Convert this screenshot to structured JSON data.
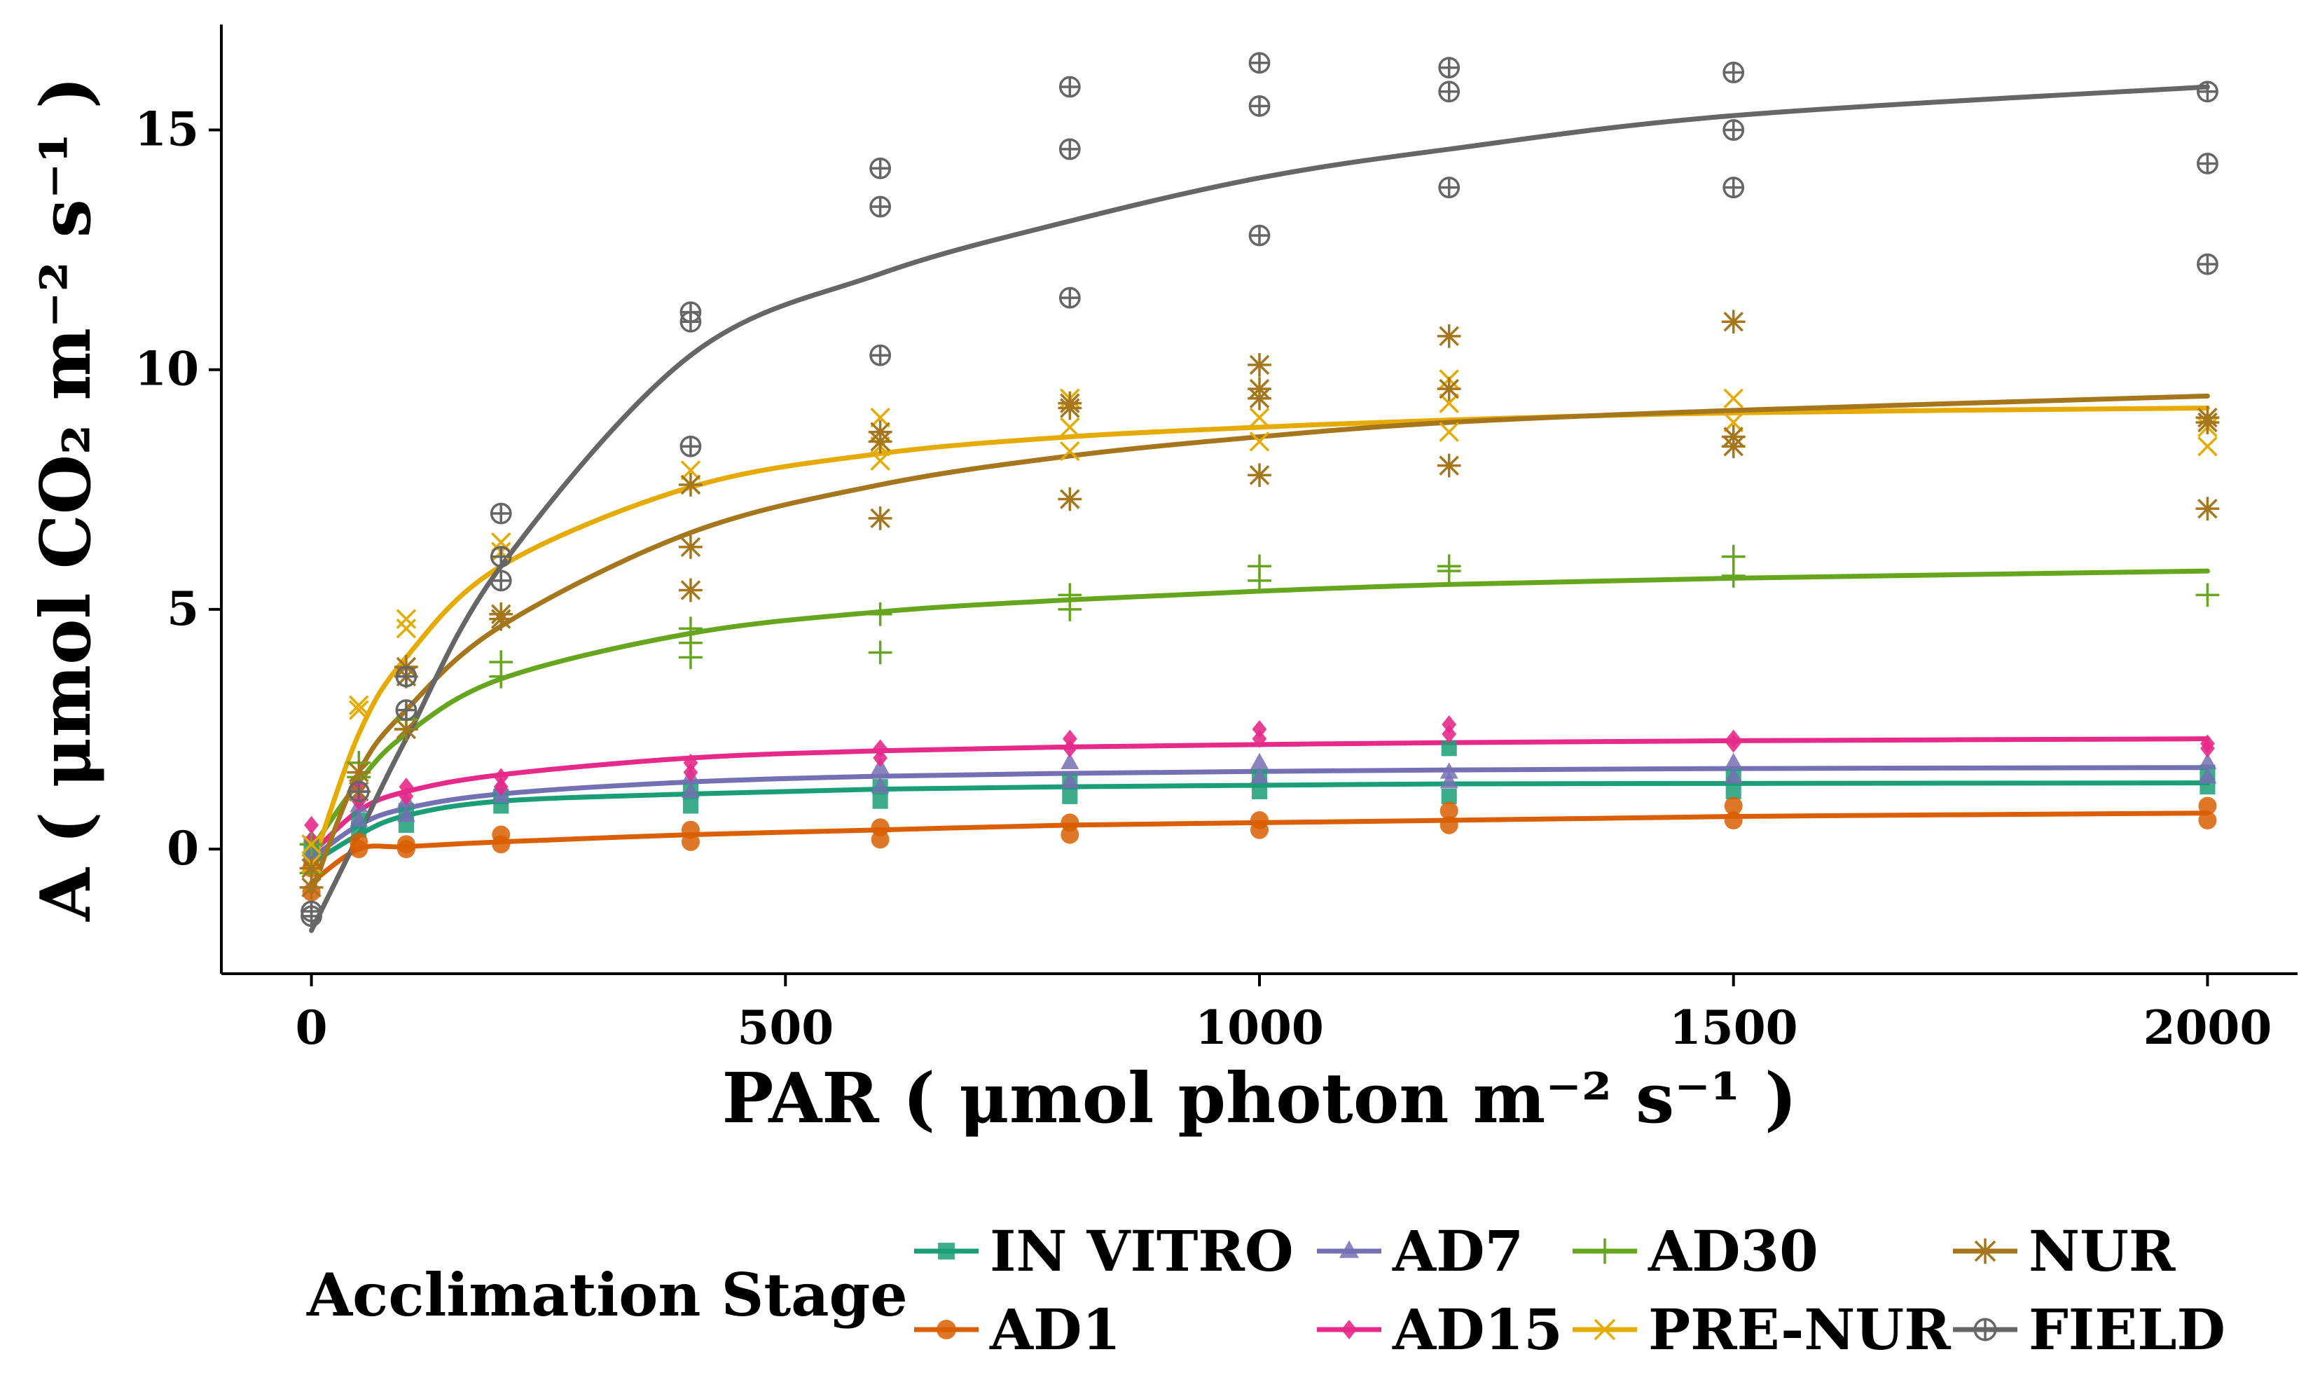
{
  "chart_data": {
    "type": "scatter",
    "title": "",
    "xlabel": "PAR ( μmol photon m⁻² s⁻¹ )",
    "ylabel": "A ( μmol CO₂ m⁻² s⁻¹ )",
    "xlim": [
      -95,
      2095
    ],
    "ylim": [
      -2.6,
      17.2
    ],
    "x_ticks": [
      0,
      500,
      1000,
      1500,
      2000
    ],
    "y_ticks": [
      0,
      5,
      10,
      15
    ],
    "x_tick_labels": [
      "0",
      "500",
      "1000",
      "1500",
      "2000"
    ],
    "y_tick_labels": [
      "0",
      "5",
      "10",
      "15"
    ],
    "grid": false,
    "legend_title": "Acclimation Stage",
    "legend_position": "bottom",
    "series": [
      {
        "name": "IN VITRO",
        "color": "#1b9e77",
        "marker": "square",
        "curve": [
          [
            0,
            -0.3
          ],
          [
            50,
            0.3
          ],
          [
            100,
            0.7
          ],
          [
            200,
            1.0
          ],
          [
            400,
            1.15
          ],
          [
            600,
            1.25
          ],
          [
            800,
            1.3
          ],
          [
            1000,
            1.33
          ],
          [
            1200,
            1.36
          ],
          [
            1500,
            1.37
          ],
          [
            2000,
            1.38
          ]
        ],
        "points": [
          [
            0,
            0.1
          ],
          [
            0,
            -0.2
          ],
          [
            50,
            0.4
          ],
          [
            50,
            0.6
          ],
          [
            100,
            0.5
          ],
          [
            100,
            0.8
          ],
          [
            200,
            0.9
          ],
          [
            200,
            1.1
          ],
          [
            400,
            0.9
          ],
          [
            400,
            1.2
          ],
          [
            600,
            1.0
          ],
          [
            600,
            1.3
          ],
          [
            800,
            1.1
          ],
          [
            800,
            1.4
          ],
          [
            1000,
            1.2
          ],
          [
            1000,
            1.5
          ],
          [
            1200,
            1.1
          ],
          [
            1200,
            2.1
          ],
          [
            1500,
            1.2
          ],
          [
            1500,
            1.5
          ],
          [
            2000,
            1.3
          ],
          [
            2000,
            1.6
          ]
        ]
      },
      {
        "name": "AD1",
        "color": "#d95f02",
        "marker": "circle",
        "curve": [
          [
            0,
            -0.7
          ],
          [
            50,
            0.0
          ],
          [
            100,
            0.05
          ],
          [
            200,
            0.15
          ],
          [
            400,
            0.3
          ],
          [
            600,
            0.4
          ],
          [
            800,
            0.5
          ],
          [
            1000,
            0.55
          ],
          [
            1200,
            0.6
          ],
          [
            1500,
            0.68
          ],
          [
            2000,
            0.75
          ]
        ],
        "points": [
          [
            0,
            -0.4
          ],
          [
            0,
            -0.9
          ],
          [
            50,
            0.0
          ],
          [
            50,
            0.15
          ],
          [
            100,
            0.0
          ],
          [
            100,
            0.1
          ],
          [
            200,
            0.1
          ],
          [
            200,
            0.3
          ],
          [
            400,
            0.15
          ],
          [
            400,
            0.4
          ],
          [
            600,
            0.2
          ],
          [
            600,
            0.45
          ],
          [
            800,
            0.3
          ],
          [
            800,
            0.55
          ],
          [
            1000,
            0.4
          ],
          [
            1000,
            0.6
          ],
          [
            1200,
            0.5
          ],
          [
            1200,
            0.8
          ],
          [
            1500,
            0.6
          ],
          [
            1500,
            0.9
          ],
          [
            2000,
            0.6
          ],
          [
            2000,
            0.9
          ]
        ]
      },
      {
        "name": "AD7",
        "color": "#7570b3",
        "marker": "triangle",
        "curve": [
          [
            0,
            -0.2
          ],
          [
            50,
            0.5
          ],
          [
            100,
            0.85
          ],
          [
            200,
            1.15
          ],
          [
            400,
            1.4
          ],
          [
            600,
            1.52
          ],
          [
            800,
            1.58
          ],
          [
            1000,
            1.62
          ],
          [
            1200,
            1.65
          ],
          [
            1500,
            1.68
          ],
          [
            2000,
            1.7
          ]
        ],
        "points": [
          [
            0,
            0.2
          ],
          [
            0,
            -0.1
          ],
          [
            50,
            0.6
          ],
          [
            50,
            0.9
          ],
          [
            100,
            0.7
          ],
          [
            100,
            1.0
          ],
          [
            200,
            1.1
          ],
          [
            200,
            1.3
          ],
          [
            400,
            1.2
          ],
          [
            400,
            1.5
          ],
          [
            600,
            1.3
          ],
          [
            600,
            1.7
          ],
          [
            800,
            1.4
          ],
          [
            800,
            1.8
          ],
          [
            1000,
            1.5
          ],
          [
            1000,
            1.8
          ],
          [
            1200,
            1.4
          ],
          [
            1200,
            1.6
          ],
          [
            1500,
            1.5
          ],
          [
            1500,
            1.8
          ],
          [
            2000,
            1.5
          ],
          [
            2000,
            1.8
          ]
        ]
      },
      {
        "name": "AD15",
        "color": "#e7298a",
        "marker": "diamond",
        "curve": [
          [
            0,
            -0.1
          ],
          [
            50,
            0.8
          ],
          [
            100,
            1.2
          ],
          [
            200,
            1.55
          ],
          [
            400,
            1.9
          ],
          [
            600,
            2.05
          ],
          [
            800,
            2.13
          ],
          [
            1000,
            2.18
          ],
          [
            1200,
            2.22
          ],
          [
            1500,
            2.26
          ],
          [
            2000,
            2.3
          ]
        ],
        "points": [
          [
            0,
            0.5
          ],
          [
            0,
            0.2
          ],
          [
            50,
            1.0
          ],
          [
            50,
            1.3
          ],
          [
            100,
            1.1
          ],
          [
            100,
            1.3
          ],
          [
            200,
            1.3
          ],
          [
            200,
            1.5
          ],
          [
            400,
            1.6
          ],
          [
            400,
            1.8
          ],
          [
            600,
            1.9
          ],
          [
            600,
            2.1
          ],
          [
            800,
            2.1
          ],
          [
            800,
            2.3
          ],
          [
            1000,
            2.3
          ],
          [
            1000,
            2.5
          ],
          [
            1200,
            2.4
          ],
          [
            1200,
            2.6
          ],
          [
            1500,
            2.2
          ],
          [
            1500,
            2.3
          ],
          [
            2000,
            2.1
          ],
          [
            2000,
            2.2
          ]
        ]
      },
      {
        "name": "AD30",
        "color": "#66a61e",
        "marker": "plus",
        "curve": [
          [
            0,
            0.0
          ],
          [
            50,
            1.4
          ],
          [
            100,
            2.4
          ],
          [
            200,
            3.55
          ],
          [
            400,
            4.5
          ],
          [
            600,
            4.95
          ],
          [
            800,
            5.2
          ],
          [
            1000,
            5.38
          ],
          [
            1200,
            5.52
          ],
          [
            1500,
            5.65
          ],
          [
            2000,
            5.8
          ]
        ],
        "points": [
          [
            0,
            0.1
          ],
          [
            0,
            -0.5
          ],
          [
            50,
            1.5
          ],
          [
            50,
            1.8
          ],
          [
            100,
            2.5
          ],
          [
            100,
            2.7
          ],
          [
            200,
            3.6
          ],
          [
            200,
            3.9
          ],
          [
            400,
            4.0
          ],
          [
            400,
            4.3
          ],
          [
            400,
            4.6
          ],
          [
            600,
            4.1
          ],
          [
            600,
            4.9
          ],
          [
            800,
            5.0
          ],
          [
            800,
            5.3
          ],
          [
            1000,
            5.6
          ],
          [
            1000,
            5.9
          ],
          [
            1200,
            5.8
          ],
          [
            1200,
            5.9
          ],
          [
            1500,
            5.7
          ],
          [
            1500,
            6.1
          ],
          [
            2000,
            5.3
          ]
        ]
      },
      {
        "name": "PRE-NUR",
        "color": "#e6ab02",
        "marker": "x",
        "curve": [
          [
            0,
            -0.4
          ],
          [
            50,
            2.4
          ],
          [
            100,
            4.0
          ],
          [
            200,
            5.9
          ],
          [
            400,
            7.55
          ],
          [
            600,
            8.25
          ],
          [
            800,
            8.6
          ],
          [
            1000,
            8.8
          ],
          [
            1200,
            8.95
          ],
          [
            1500,
            9.1
          ],
          [
            2000,
            9.2
          ]
        ],
        "points": [
          [
            0,
            -0.3
          ],
          [
            0,
            0.1
          ],
          [
            50,
            2.9
          ],
          [
            50,
            3.0
          ],
          [
            100,
            4.6
          ],
          [
            100,
            4.8
          ],
          [
            200,
            6.2
          ],
          [
            200,
            6.4
          ],
          [
            400,
            7.6
          ],
          [
            400,
            7.9
          ],
          [
            600,
            8.1
          ],
          [
            600,
            8.4
          ],
          [
            600,
            9.0
          ],
          [
            800,
            8.3
          ],
          [
            800,
            8.8
          ],
          [
            800,
            9.4
          ],
          [
            1000,
            8.5
          ],
          [
            1000,
            9.0
          ],
          [
            1200,
            8.7
          ],
          [
            1200,
            9.3
          ],
          [
            1200,
            9.8
          ],
          [
            1500,
            8.9
          ],
          [
            1500,
            9.4
          ],
          [
            2000,
            8.4
          ],
          [
            2000,
            8.8
          ]
        ]
      },
      {
        "name": "NUR",
        "color": "#a6761d",
        "marker": "star",
        "curve": [
          [
            0,
            -0.9
          ],
          [
            50,
            1.6
          ],
          [
            100,
            2.9
          ],
          [
            200,
            4.65
          ],
          [
            400,
            6.6
          ],
          [
            600,
            7.6
          ],
          [
            800,
            8.2
          ],
          [
            1000,
            8.6
          ],
          [
            1200,
            8.9
          ],
          [
            1500,
            9.15
          ],
          [
            2000,
            9.45
          ]
        ],
        "points": [
          [
            0,
            -0.8
          ],
          [
            0,
            -0.4
          ],
          [
            50,
            1.2
          ],
          [
            50,
            1.6
          ],
          [
            100,
            2.5
          ],
          [
            100,
            3.6
          ],
          [
            100,
            3.8
          ],
          [
            200,
            4.8
          ],
          [
            200,
            4.9
          ],
          [
            400,
            5.4
          ],
          [
            400,
            6.3
          ],
          [
            400,
            7.6
          ],
          [
            600,
            6.9
          ],
          [
            600,
            8.5
          ],
          [
            600,
            8.7
          ],
          [
            800,
            7.3
          ],
          [
            800,
            9.2
          ],
          [
            800,
            9.3
          ],
          [
            1000,
            7.8
          ],
          [
            1000,
            9.4
          ],
          [
            1000,
            9.6
          ],
          [
            1000,
            10.1
          ],
          [
            1200,
            8.0
          ],
          [
            1200,
            9.6
          ],
          [
            1200,
            10.7
          ],
          [
            1500,
            8.4
          ],
          [
            1500,
            8.6
          ],
          [
            1500,
            11.0
          ],
          [
            2000,
            7.1
          ],
          [
            2000,
            8.9
          ],
          [
            2000,
            9.0
          ]
        ]
      },
      {
        "name": "FIELD",
        "color": "#666666",
        "marker": "circle-plus",
        "curve": [
          [
            0,
            -1.7
          ],
          [
            50,
            0.3
          ],
          [
            100,
            2.3
          ],
          [
            200,
            5.9
          ],
          [
            400,
            10.3
          ],
          [
            600,
            12.0
          ],
          [
            800,
            13.1
          ],
          [
            1000,
            14.0
          ],
          [
            1200,
            14.6
          ],
          [
            1500,
            15.3
          ],
          [
            2000,
            15.9
          ]
        ],
        "points": [
          [
            0,
            -1.4
          ],
          [
            0,
            -1.3
          ],
          [
            50,
            1.2
          ],
          [
            100,
            2.9
          ],
          [
            100,
            3.6
          ],
          [
            200,
            5.6
          ],
          [
            200,
            6.1
          ],
          [
            200,
            7.0
          ],
          [
            400,
            8.4
          ],
          [
            400,
            11.0
          ],
          [
            400,
            11.2
          ],
          [
            600,
            10.3
          ],
          [
            600,
            13.4
          ],
          [
            600,
            14.2
          ],
          [
            800,
            11.5
          ],
          [
            800,
            14.6
          ],
          [
            800,
            15.9
          ],
          [
            1000,
            12.8
          ],
          [
            1000,
            15.5
          ],
          [
            1000,
            16.4
          ],
          [
            1200,
            13.8
          ],
          [
            1200,
            15.8
          ],
          [
            1200,
            16.3
          ],
          [
            1500,
            13.8
          ],
          [
            1500,
            15.0
          ],
          [
            1500,
            16.2
          ],
          [
            2000,
            12.2
          ],
          [
            2000,
            14.3
          ],
          [
            2000,
            15.8
          ]
        ]
      }
    ]
  }
}
